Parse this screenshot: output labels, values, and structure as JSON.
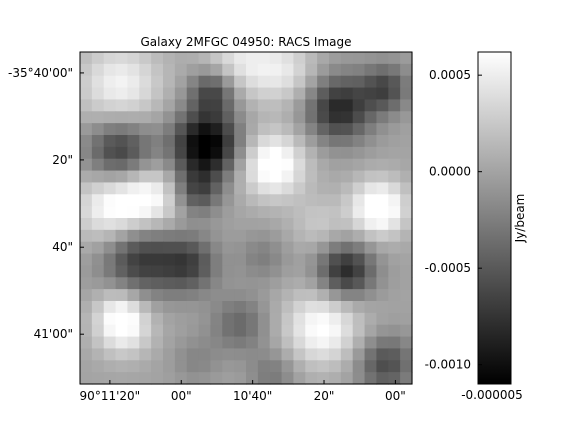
{
  "chart_data": {
    "type": "heatmap",
    "title": "Galaxy 2MFGC 04950: RACS Image",
    "colormap": "gray",
    "grid": false,
    "y_ticks": [
      "-35°40'00\"",
      "20\"",
      "40\"",
      "41'00\""
    ],
    "x_ticks": [
      "90°11'20\"",
      "00\"",
      "10'40\"",
      "20\"",
      "00\""
    ],
    "colorbar": {
      "label": "Jy/beam",
      "range": [
        -0.0011,
        0.00062
      ],
      "tick_values": [
        0.0005,
        0.0,
        -0.0005,
        -0.001
      ],
      "tick_labels": [
        "0.0005",
        "0.0000",
        "-0.0005",
        "-0.0010"
      ],
      "x_label": "-0.000005"
    },
    "grid_shape": [
      28,
      28
    ],
    "value_fn": "Smooth radio noise field of blended Gaussian lobes, Jy/beam",
    "lobes": [
      {
        "cx": 0.12,
        "cy": 0.1,
        "amp": 0.00055,
        "s": 0.09
      },
      {
        "cx": 0.48,
        "cy": 0.03,
        "amp": 0.00045,
        "s": 0.08
      },
      {
        "cx": 0.62,
        "cy": 0.06,
        "amp": 0.0004,
        "s": 0.07
      },
      {
        "cx": 0.4,
        "cy": 0.12,
        "amp": -0.0007,
        "s": 0.05
      },
      {
        "cx": 0.78,
        "cy": 0.17,
        "amp": -0.00085,
        "s": 0.07
      },
      {
        "cx": 0.92,
        "cy": 0.11,
        "amp": -0.0006,
        "s": 0.05
      },
      {
        "cx": 0.38,
        "cy": 0.28,
        "amp": -0.0012,
        "s": 0.07
      },
      {
        "cx": 0.12,
        "cy": 0.3,
        "amp": -0.00075,
        "s": 0.07
      },
      {
        "cx": 0.58,
        "cy": 0.34,
        "amp": 0.00075,
        "s": 0.07
      },
      {
        "cx": 0.35,
        "cy": 0.42,
        "amp": -0.0006,
        "s": 0.05
      },
      {
        "cx": 0.1,
        "cy": 0.47,
        "amp": 0.00065,
        "s": 0.08
      },
      {
        "cx": 0.22,
        "cy": 0.44,
        "amp": 0.00055,
        "s": 0.07
      },
      {
        "cx": 0.9,
        "cy": 0.47,
        "amp": 0.0008,
        "s": 0.06
      },
      {
        "cx": 0.72,
        "cy": 0.52,
        "amp": 0.00025,
        "s": 0.06
      },
      {
        "cx": 0.18,
        "cy": 0.62,
        "amp": -0.00075,
        "s": 0.08
      },
      {
        "cx": 0.33,
        "cy": 0.64,
        "amp": -0.0006,
        "s": 0.06
      },
      {
        "cx": 0.8,
        "cy": 0.66,
        "amp": -0.00085,
        "s": 0.06
      },
      {
        "cx": 0.55,
        "cy": 0.62,
        "amp": -0.00025,
        "s": 0.05
      },
      {
        "cx": 0.12,
        "cy": 0.77,
        "amp": 0.0003,
        "s": 0.05
      },
      {
        "cx": 0.13,
        "cy": 0.83,
        "amp": 0.0006,
        "s": 0.06
      },
      {
        "cx": 0.73,
        "cy": 0.83,
        "amp": 0.00065,
        "s": 0.08
      },
      {
        "cx": 0.48,
        "cy": 0.82,
        "amp": -0.0004,
        "s": 0.06
      },
      {
        "cx": 0.35,
        "cy": 0.93,
        "amp": -0.0002,
        "s": 0.05
      },
      {
        "cx": 0.92,
        "cy": 0.94,
        "amp": -0.0006,
        "s": 0.06
      },
      {
        "cx": 0.58,
        "cy": 0.97,
        "amp": -0.0003,
        "s": 0.05
      }
    ]
  }
}
